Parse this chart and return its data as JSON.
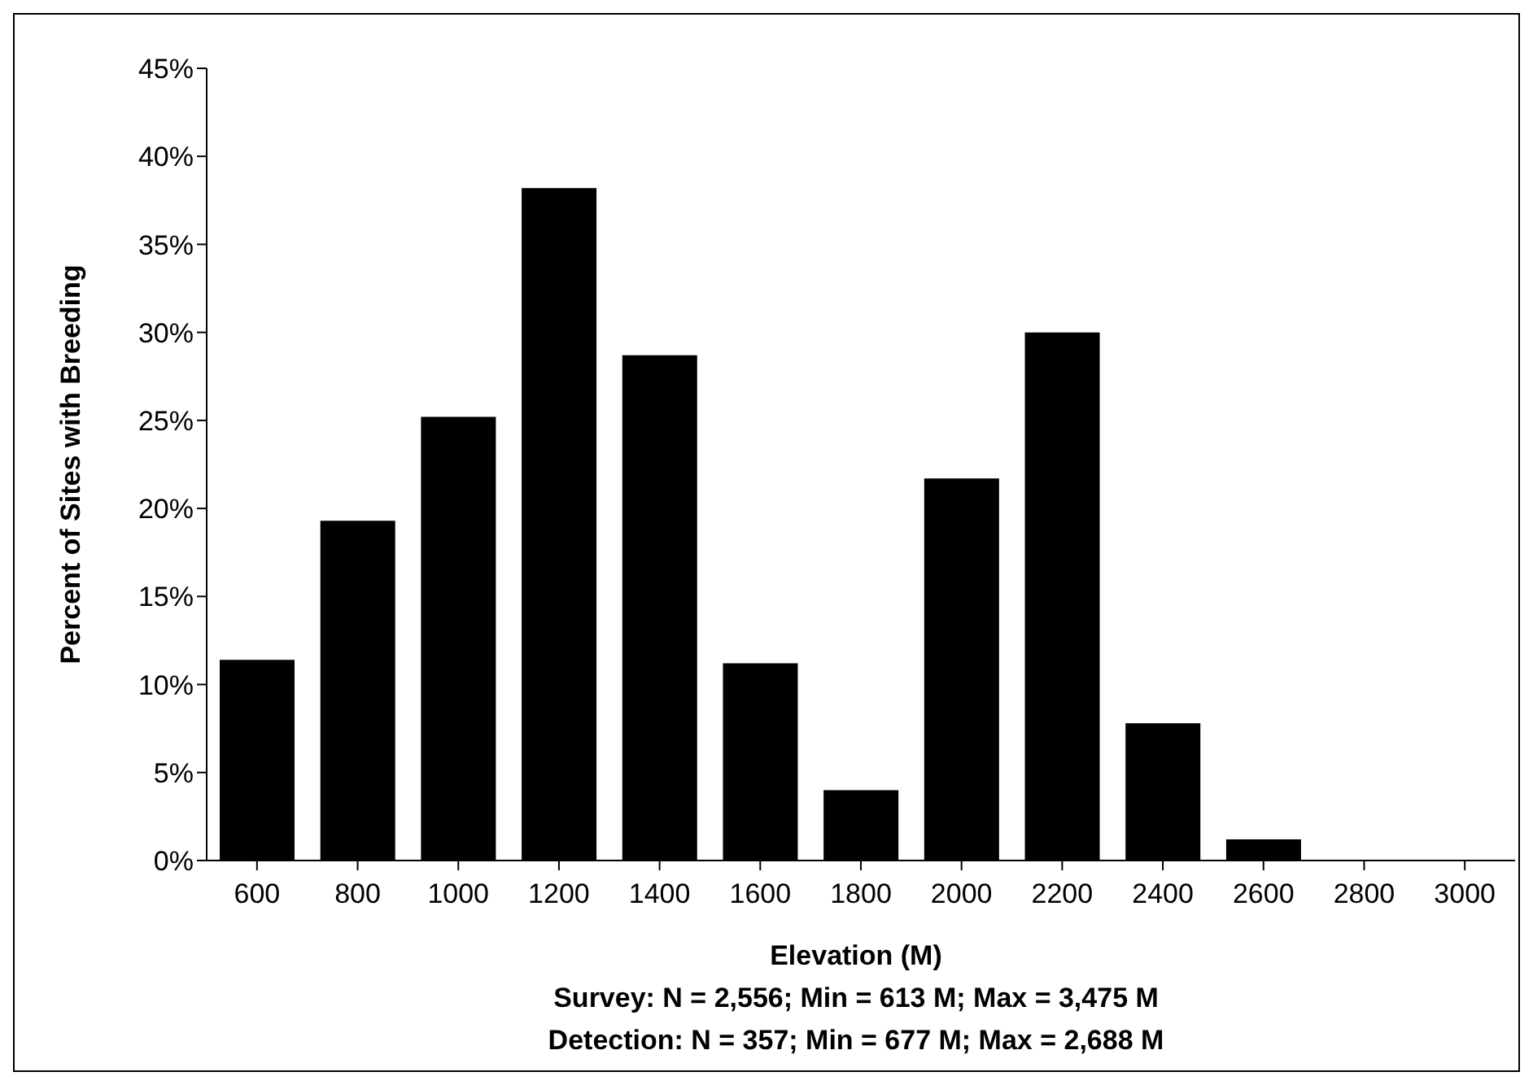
{
  "chart_data": {
    "type": "bar",
    "xlabel": "Elevation (M)",
    "ylabel": "Percent of Sites with Breeding",
    "categories": [
      "600",
      "800",
      "1000",
      "1200",
      "1400",
      "1600",
      "1800",
      "2000",
      "2200",
      "2400",
      "2600",
      "2800",
      "3000"
    ],
    "values": [
      11.4,
      19.3,
      25.2,
      38.2,
      28.7,
      11.2,
      4.0,
      21.7,
      30.0,
      7.8,
      1.2,
      0,
      0
    ],
    "color": "#000000",
    "ylim": [
      0,
      45
    ],
    "yticks": [
      {
        "value": 0,
        "label": "0%"
      },
      {
        "value": 5,
        "label": "5%"
      },
      {
        "value": 10,
        "label": "10%"
      },
      {
        "value": 15,
        "label": "15%"
      },
      {
        "value": 20,
        "label": "20%"
      },
      {
        "value": 25,
        "label": "25%"
      },
      {
        "value": 30,
        "label": "30%"
      },
      {
        "value": 35,
        "label": "35%"
      },
      {
        "value": 40,
        "label": "40%"
      },
      {
        "value": 45,
        "label": "45%"
      }
    ],
    "annotations": [
      "Survey: N = 2,556; Min = 613 M; Max = 3,475 M",
      "Detection: N = 357; Min = 677 M; Max = 2,688 M"
    ],
    "grid": false,
    "legend": false
  }
}
